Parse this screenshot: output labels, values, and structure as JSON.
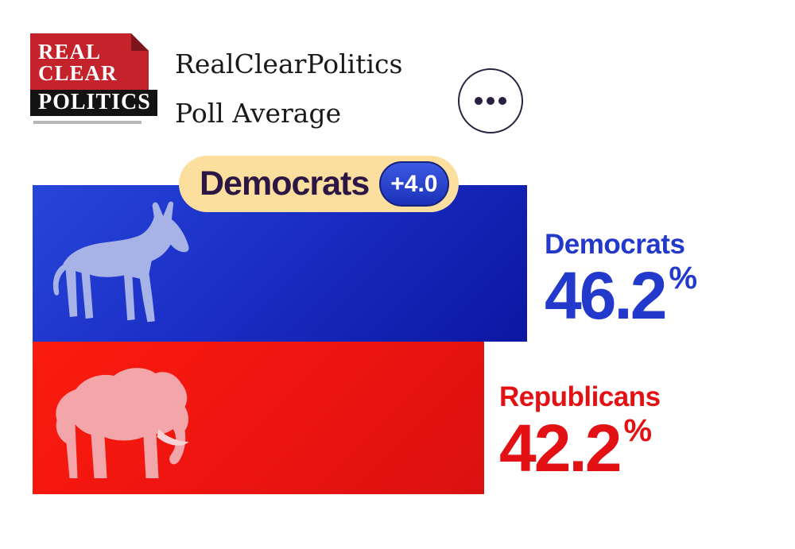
{
  "header": {
    "logo": {
      "line1": "REAL",
      "line2": "CLEAR",
      "line3": "POLITICS"
    },
    "title_line1": "RealClearPolitics",
    "title_line2": "Poll Average"
  },
  "badge": {
    "label": "Democrats",
    "value": "+4.0"
  },
  "chart_data": {
    "type": "bar",
    "orientation": "horizontal",
    "title": "RealClearPolitics Poll Average",
    "categories": [
      "Democrats",
      "Republicans"
    ],
    "values": [
      46.2,
      42.2
    ],
    "value_labels": [
      "46.2",
      "42.2"
    ],
    "unit": "%",
    "leader": {
      "name": "Democrats",
      "margin": "+4.0"
    },
    "legend": "none",
    "grid": "off",
    "colors": {
      "democrats_bar": "#1b2ec5",
      "republicans_bar": "#ee1410",
      "democrats_text": "#2239cb",
      "republicans_text": "#e31114",
      "badge_background": "#fcdf9e",
      "badge_text": "#2c1644",
      "badge_pill": "#2342d2"
    }
  }
}
